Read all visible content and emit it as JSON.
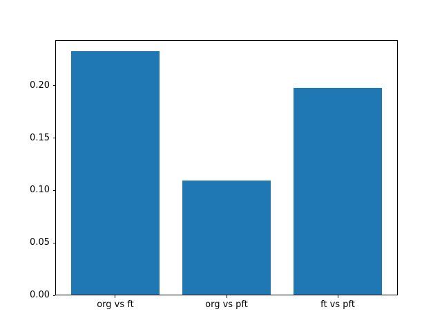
{
  "figure": {
    "background": "#ffffff",
    "frame_color": "#000000",
    "tick_color": "#000000",
    "text_color": "#000000"
  },
  "chart_data": {
    "type": "bar",
    "categories": [
      "org vs ft",
      "org vs pft",
      "ft vs pft"
    ],
    "values": [
      0.232,
      0.109,
      0.197
    ],
    "title": "",
    "xlabel": "",
    "ylabel": "",
    "xlim": [
      -0.54,
      2.54
    ],
    "ylim": [
      0,
      0.2436
    ],
    "yticks": [
      0.0,
      0.05,
      0.1,
      0.15,
      0.2
    ],
    "ytick_labels": [
      "0.00",
      "0.05",
      "0.10",
      "0.15",
      "0.20"
    ],
    "bar_width": 0.8,
    "bar_color": "#1f77b4",
    "grid": false,
    "legend": null
  }
}
